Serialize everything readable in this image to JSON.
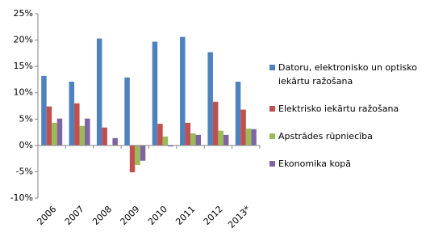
{
  "chart_data": {
    "type": "bar",
    "categories": [
      "2006",
      "2007",
      "2008",
      "2009",
      "2010",
      "2011",
      "2012",
      "2013*"
    ],
    "series": [
      {
        "name": "Datoru, elektronisko un optisko iekārtu ražošana",
        "color": "#4f81bd",
        "values": [
          13.2,
          12.1,
          20.3,
          12.9,
          19.7,
          20.6,
          17.7,
          12.1
        ]
      },
      {
        "name": "Elektrisko iekārtu ražošana",
        "color": "#c0504d",
        "values": [
          7.4,
          8.0,
          3.4,
          -5.1,
          4.1,
          4.3,
          8.3,
          6.8
        ]
      },
      {
        "name": "Apstrādes rūpniecība",
        "color": "#9bbb59",
        "values": [
          4.3,
          3.7,
          0,
          -3.7,
          1.7,
          2.3,
          2.8,
          3.2
        ]
      },
      {
        "name": "Ekonomika kopā",
        "color": "#8064a2",
        "values": [
          5.1,
          5.1,
          1.4,
          -2.9,
          -0.2,
          2.0,
          2.0,
          3.1
        ]
      }
    ],
    "ylim": [
      -10,
      25
    ],
    "yticks": [
      {
        "value": -10,
        "label": "-10%"
      },
      {
        "value": -5,
        "label": "-5%"
      },
      {
        "value": 0,
        "label": "0%"
      },
      {
        "value": 5,
        "label": "5%"
      },
      {
        "value": 10,
        "label": "10%"
      },
      {
        "value": 15,
        "label": "15%"
      },
      {
        "value": 20,
        "label": "20%"
      },
      {
        "value": 25,
        "label": "25%"
      }
    ],
    "grid": false,
    "legend": "right"
  }
}
